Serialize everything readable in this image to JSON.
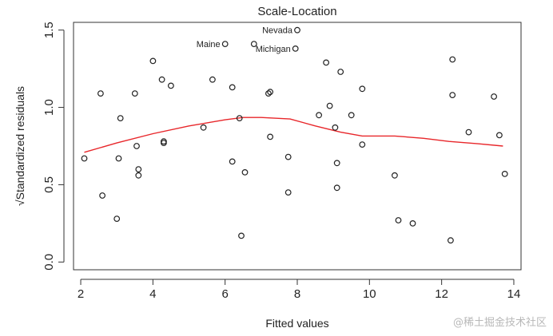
{
  "chart_data": {
    "type": "scatter",
    "title": "Scale-Location",
    "xlabel": "Fitted values",
    "ylabel": "√Standardized residuals",
    "xlim": [
      1.8,
      14.2
    ],
    "ylim": [
      -0.05,
      1.55
    ],
    "xticks": [
      "2",
      "4",
      "6",
      "8",
      "10",
      "12",
      "14"
    ],
    "yticks": [
      "0.0",
      "0.5",
      "1.0",
      "1.5"
    ],
    "points": [
      {
        "x": 2.1,
        "y": 0.67
      },
      {
        "x": 2.55,
        "y": 1.09
      },
      {
        "x": 2.6,
        "y": 0.43
      },
      {
        "x": 3.0,
        "y": 0.28
      },
      {
        "x": 3.05,
        "y": 0.67
      },
      {
        "x": 3.1,
        "y": 0.93
      },
      {
        "x": 3.5,
        "y": 1.09
      },
      {
        "x": 3.55,
        "y": 0.75
      },
      {
        "x": 3.6,
        "y": 0.6
      },
      {
        "x": 3.6,
        "y": 0.56
      },
      {
        "x": 4.0,
        "y": 1.3
      },
      {
        "x": 4.25,
        "y": 1.18
      },
      {
        "x": 4.3,
        "y": 0.78
      },
      {
        "x": 4.3,
        "y": 0.77
      },
      {
        "x": 4.5,
        "y": 1.14
      },
      {
        "x": 5.4,
        "y": 0.87
      },
      {
        "x": 5.65,
        "y": 1.18
      },
      {
        "x": 6.0,
        "y": 1.41
      },
      {
        "x": 6.2,
        "y": 1.13
      },
      {
        "x": 6.2,
        "y": 0.65
      },
      {
        "x": 6.4,
        "y": 0.93
      },
      {
        "x": 6.45,
        "y": 0.17
      },
      {
        "x": 6.55,
        "y": 0.58
      },
      {
        "x": 6.8,
        "y": 1.41
      },
      {
        "x": 7.2,
        "y": 1.09
      },
      {
        "x": 7.25,
        "y": 1.1
      },
      {
        "x": 7.25,
        "y": 0.81
      },
      {
        "x": 7.75,
        "y": 0.68
      },
      {
        "x": 7.75,
        "y": 0.45
      },
      {
        "x": 8.0,
        "y": 1.5
      },
      {
        "x": 7.95,
        "y": 1.38
      },
      {
        "x": 8.6,
        "y": 0.95
      },
      {
        "x": 8.8,
        "y": 1.29
      },
      {
        "x": 8.9,
        "y": 1.01
      },
      {
        "x": 9.05,
        "y": 0.87
      },
      {
        "x": 9.1,
        "y": 0.64
      },
      {
        "x": 9.1,
        "y": 0.48
      },
      {
        "x": 9.2,
        "y": 1.23
      },
      {
        "x": 9.5,
        "y": 0.95
      },
      {
        "x": 9.8,
        "y": 1.12
      },
      {
        "x": 9.8,
        "y": 0.76
      },
      {
        "x": 10.7,
        "y": 0.56
      },
      {
        "x": 10.8,
        "y": 0.27
      },
      {
        "x": 11.2,
        "y": 0.25
      },
      {
        "x": 12.25,
        "y": 0.14
      },
      {
        "x": 12.3,
        "y": 1.31
      },
      {
        "x": 12.3,
        "y": 1.08
      },
      {
        "x": 12.75,
        "y": 0.84
      },
      {
        "x": 13.45,
        "y": 1.07
      },
      {
        "x": 13.6,
        "y": 0.82
      },
      {
        "x": 13.75,
        "y": 0.57
      }
    ],
    "smooth_line": {
      "x": [
        2.1,
        3.0,
        4.0,
        5.0,
        6.0,
        6.5,
        7.0,
        7.8,
        8.5,
        9.2,
        9.8,
        10.7,
        11.5,
        12.2,
        13.0,
        13.7
      ],
      "y": [
        0.71,
        0.77,
        0.83,
        0.88,
        0.92,
        0.935,
        0.935,
        0.925,
        0.88,
        0.84,
        0.815,
        0.815,
        0.8,
        0.78,
        0.765,
        0.75
      ]
    },
    "annotations": [
      {
        "label": "Nevada",
        "x": 8.0,
        "y": 1.5
      },
      {
        "label": "Maine",
        "x": 6.0,
        "y": 1.41
      },
      {
        "label": "Michigan",
        "x": 7.95,
        "y": 1.38
      }
    ],
    "colors": {
      "points": "#222222",
      "smooth": "#e8262a",
      "axis": "#333333"
    }
  },
  "watermark": "@稀土掘金技术社区"
}
